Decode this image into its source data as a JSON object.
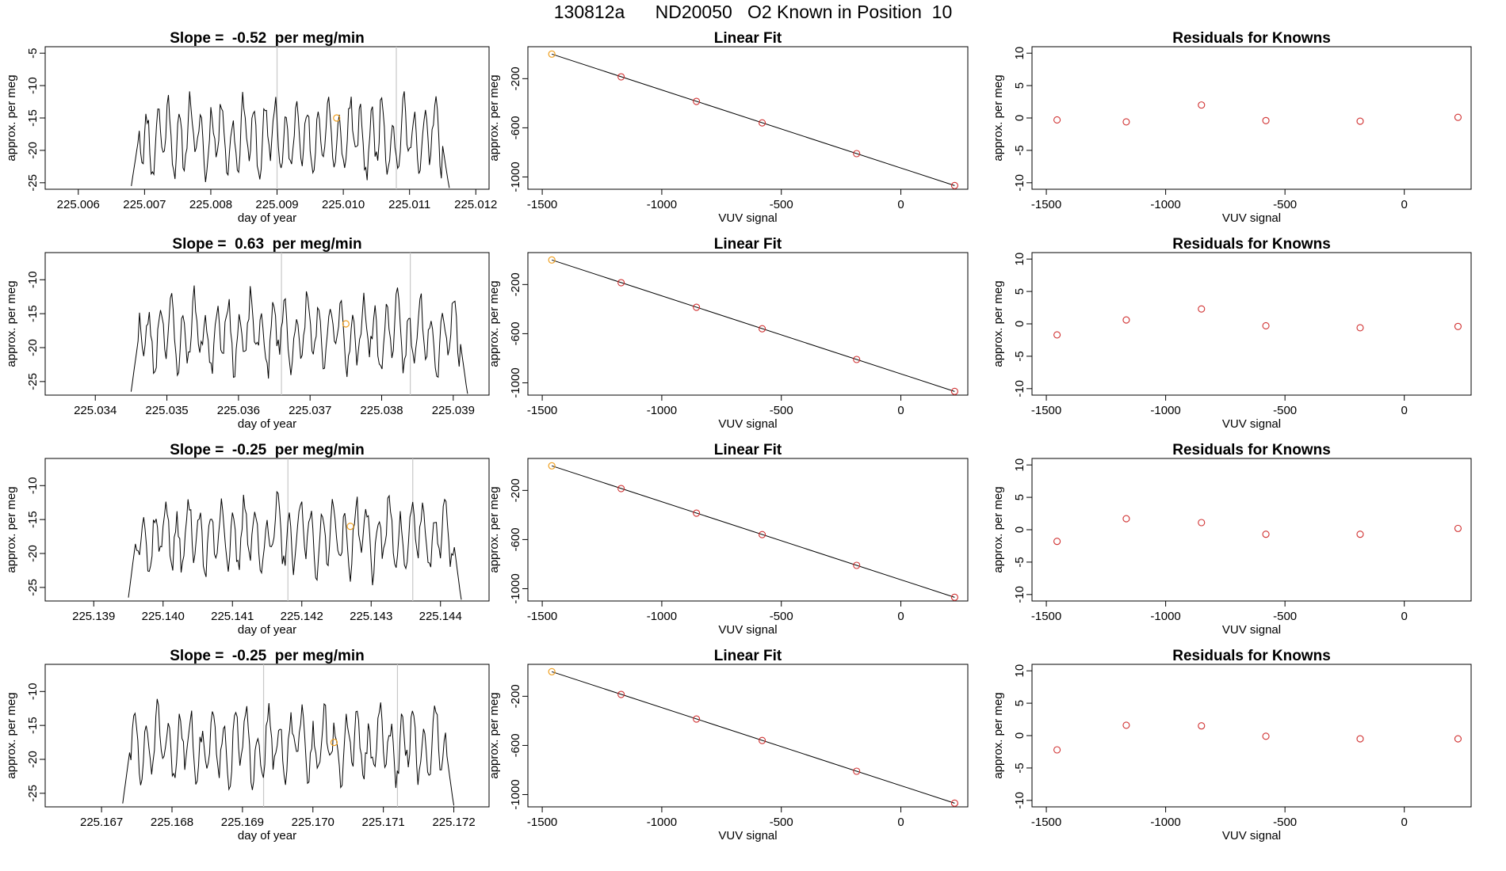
{
  "title": {
    "run": "130812a",
    "tank": "ND20050",
    "label": "O2 Known in Position  10"
  },
  "colors": {
    "trace": "#000000",
    "marker_guide": "#c8c8c8",
    "residual_points": "#d03030",
    "highlight_point": "#f0a020"
  },
  "chart_data": [
    {
      "row": 1,
      "panels": [
        {
          "type": "line",
          "slope_prefix": "Slope =  ",
          "slope": "-0.52",
          "slope_suffix": "  per meg/min",
          "xlabel": "day of year",
          "ylabel": "approx. per meg",
          "xlim": [
            225.0055,
            225.0122
          ],
          "ylim": [
            -26,
            -4
          ],
          "xticks": [
            225.006,
            225.007,
            225.008,
            225.009,
            225.01,
            225.011,
            225.012
          ],
          "xtick_labels": [
            "225.006",
            "225.007",
            "225.008",
            "225.009",
            "225.010",
            "225.011",
            "225.012"
          ],
          "yticks": [
            -5,
            -10,
            -15,
            -20,
            -25
          ],
          "ytick_labels": [
            "-5",
            "-10",
            "-15",
            "-20",
            "-25"
          ],
          "trace_start": 225.0068,
          "trace_end": 225.0116,
          "trace_base": -18,
          "trace_amp": 4.5,
          "seed": 11,
          "vlines": [
            225.009,
            225.0108
          ],
          "highlight": [
            225.0099,
            -15
          ],
          "series": []
        },
        {
          "type": "scatter",
          "title": "Linear Fit",
          "xlabel": "VUV signal",
          "ylabel": "approx. per meg",
          "xlim": [
            -1560,
            280
          ],
          "ylim": [
            -1100,
            60
          ],
          "xticks": [
            -1500,
            -1000,
            -500,
            0
          ],
          "xtick_labels": [
            "-1500",
            "-1000",
            "-500",
            "0"
          ],
          "yticks": [
            -200,
            -600,
            -1000
          ],
          "ytick_labels": [
            "-200",
            "-600",
            "-1000"
          ],
          "fit": [
            [
              -1460,
              0
            ],
            [
              225,
              -1070
            ]
          ],
          "points": [
            [
              -1460,
              0
            ],
            [
              -1170,
              -185
            ],
            [
              -855,
              -385
            ],
            [
              -580,
              -560
            ],
            [
              -185,
              -810
            ],
            [
              225,
              -1070
            ]
          ],
          "highlight_index": 0
        },
        {
          "type": "scatter",
          "title": "Residuals for Knowns",
          "xlabel": "VUV signal",
          "ylabel": "approx. per meg",
          "xlim": [
            -1560,
            280
          ],
          "ylim": [
            -11,
            11
          ],
          "xticks": [
            -1500,
            -1000,
            -500,
            0
          ],
          "xtick_labels": [
            "-1500",
            "-1000",
            "-500",
            "0"
          ],
          "yticks": [
            10,
            5,
            0,
            -5,
            -10
          ],
          "ytick_labels": [
            "10",
            "5",
            "0",
            "-5",
            "-10"
          ],
          "points": [
            [
              -1455,
              -0.3
            ],
            [
              -1165,
              -0.6
            ],
            [
              -850,
              2.0
            ],
            [
              -580,
              -0.4
            ],
            [
              -185,
              -0.5
            ],
            [
              225,
              0.1
            ]
          ]
        }
      ]
    },
    {
      "row": 2,
      "panels": [
        {
          "type": "line",
          "slope_prefix": "Slope =  ",
          "slope": "0.63",
          "slope_suffix": "  per meg/min",
          "xlabel": "day of year",
          "ylabel": "approx. per meg",
          "xlim": [
            225.0333,
            225.0395
          ],
          "ylim": [
            -27,
            -6
          ],
          "xticks": [
            225.034,
            225.035,
            225.036,
            225.037,
            225.038,
            225.039
          ],
          "xtick_labels": [
            "225.034",
            "225.035",
            "225.036",
            "225.037",
            "225.038",
            "225.039"
          ],
          "yticks": [
            -10,
            -15,
            -20,
            -25
          ],
          "ytick_labels": [
            "-10",
            "-15",
            "-20",
            "-25"
          ],
          "trace_start": 225.0345,
          "trace_end": 225.0392,
          "trace_base": -18,
          "trace_amp": 4,
          "seed": 23,
          "vlines": [
            225.0366,
            225.0384
          ],
          "highlight": [
            225.0375,
            -16.5
          ],
          "series": []
        },
        {
          "type": "scatter",
          "title": "Linear Fit",
          "xlabel": "VUV signal",
          "ylabel": "approx. per meg",
          "xlim": [
            -1560,
            280
          ],
          "ylim": [
            -1100,
            60
          ],
          "xticks": [
            -1500,
            -1000,
            -500,
            0
          ],
          "xtick_labels": [
            "-1500",
            "-1000",
            "-500",
            "0"
          ],
          "yticks": [
            -200,
            -600,
            -1000
          ],
          "ytick_labels": [
            "-200",
            "-600",
            "-1000"
          ],
          "fit": [
            [
              -1460,
              0
            ],
            [
              225,
              -1070
            ]
          ],
          "points": [
            [
              -1460,
              0
            ],
            [
              -1170,
              -185
            ],
            [
              -855,
              -385
            ],
            [
              -580,
              -560
            ],
            [
              -185,
              -810
            ],
            [
              225,
              -1070
            ]
          ],
          "highlight_index": 0
        },
        {
          "type": "scatter",
          "title": "Residuals for Knowns",
          "xlabel": "VUV signal",
          "ylabel": "approx. per meg",
          "xlim": [
            -1560,
            280
          ],
          "ylim": [
            -11,
            11
          ],
          "xticks": [
            -1500,
            -1000,
            -500,
            0
          ],
          "xtick_labels": [
            "-1500",
            "-1000",
            "-500",
            "0"
          ],
          "yticks": [
            10,
            5,
            0,
            -5,
            -10
          ],
          "ytick_labels": [
            "10",
            "5",
            "0",
            "-5",
            "-10"
          ],
          "points": [
            [
              -1455,
              -1.7
            ],
            [
              -1165,
              0.6
            ],
            [
              -850,
              2.3
            ],
            [
              -580,
              -0.3
            ],
            [
              -185,
              -0.6
            ],
            [
              225,
              -0.4
            ]
          ]
        }
      ]
    },
    {
      "row": 3,
      "panels": [
        {
          "type": "line",
          "slope_prefix": "Slope =  ",
          "slope": "-0.25",
          "slope_suffix": "  per meg/min",
          "xlabel": "day of year",
          "ylabel": "approx. per meg",
          "xlim": [
            225.1383,
            225.1447
          ],
          "ylim": [
            -27,
            -6
          ],
          "xticks": [
            225.139,
            225.14,
            225.141,
            225.142,
            225.143,
            225.144
          ],
          "xtick_labels": [
            "225.139",
            "225.140",
            "225.141",
            "225.142",
            "225.143",
            "225.144"
          ],
          "yticks": [
            -10,
            -15,
            -20,
            -25
          ],
          "ytick_labels": [
            "-10",
            "-15",
            "-20",
            "-25"
          ],
          "trace_start": 225.1395,
          "trace_end": 225.1443,
          "trace_base": -17.5,
          "trace_amp": 4,
          "seed": 37,
          "vlines": [
            225.1418,
            225.1436
          ],
          "highlight": [
            225.1427,
            -16
          ],
          "series": []
        },
        {
          "type": "scatter",
          "title": "Linear Fit",
          "xlabel": "VUV signal",
          "ylabel": "approx. per meg",
          "xlim": [
            -1560,
            280
          ],
          "ylim": [
            -1100,
            60
          ],
          "xticks": [
            -1500,
            -1000,
            -500,
            0
          ],
          "xtick_labels": [
            "-1500",
            "-1000",
            "-500",
            "0"
          ],
          "yticks": [
            -200,
            -600,
            -1000
          ],
          "ytick_labels": [
            "-200",
            "-600",
            "-1000"
          ],
          "fit": [
            [
              -1460,
              0
            ],
            [
              225,
              -1070
            ]
          ],
          "points": [
            [
              -1460,
              0
            ],
            [
              -1170,
              -185
            ],
            [
              -855,
              -385
            ],
            [
              -580,
              -560
            ],
            [
              -185,
              -810
            ],
            [
              225,
              -1070
            ]
          ],
          "highlight_index": 0
        },
        {
          "type": "scatter",
          "title": "Residuals for Knowns",
          "xlabel": "VUV signal",
          "ylabel": "approx. per meg",
          "xlim": [
            -1560,
            280
          ],
          "ylim": [
            -11,
            11
          ],
          "xticks": [
            -1500,
            -1000,
            -500,
            0
          ],
          "xtick_labels": [
            "-1500",
            "-1000",
            "-500",
            "0"
          ],
          "yticks": [
            10,
            5,
            0,
            -5,
            -10
          ],
          "ytick_labels": [
            "10",
            "5",
            "0",
            "-5",
            "-10"
          ],
          "points": [
            [
              -1455,
              -1.8
            ],
            [
              -1165,
              1.7
            ],
            [
              -850,
              1.1
            ],
            [
              -580,
              -0.7
            ],
            [
              -185,
              -0.7
            ],
            [
              225,
              0.2
            ]
          ]
        }
      ]
    },
    {
      "row": 4,
      "panels": [
        {
          "type": "line",
          "slope_prefix": "Slope =  ",
          "slope": "-0.25",
          "slope_suffix": "  per meg/min",
          "xlabel": "day of year",
          "ylabel": "approx. per meg",
          "xlim": [
            225.1662,
            225.1725
          ],
          "ylim": [
            -27,
            -6
          ],
          "xticks": [
            225.167,
            225.168,
            225.169,
            225.17,
            225.171,
            225.172
          ],
          "xtick_labels": [
            "225.167",
            "225.168",
            "225.169",
            "225.170",
            "225.171",
            "225.172"
          ],
          "yticks": [
            -10,
            -15,
            -20,
            -25
          ],
          "ytick_labels": [
            "-10",
            "-15",
            "-20",
            "-25"
          ],
          "trace_start": 225.1673,
          "trace_end": 225.172,
          "trace_base": -18,
          "trace_amp": 4,
          "seed": 51,
          "vlines": [
            225.1693,
            225.1712
          ],
          "highlight": [
            225.1703,
            -17.5
          ],
          "series": []
        },
        {
          "type": "scatter",
          "title": "Linear Fit",
          "xlabel": "VUV signal",
          "ylabel": "approx. per meg",
          "xlim": [
            -1560,
            280
          ],
          "ylim": [
            -1100,
            60
          ],
          "xticks": [
            -1500,
            -1000,
            -500,
            0
          ],
          "xtick_labels": [
            "-1500",
            "-1000",
            "-500",
            "0"
          ],
          "yticks": [
            -200,
            -600,
            -1000
          ],
          "ytick_labels": [
            "-200",
            "-600",
            "-1000"
          ],
          "fit": [
            [
              -1460,
              0
            ],
            [
              225,
              -1070
            ]
          ],
          "points": [
            [
              -1460,
              0
            ],
            [
              -1170,
              -185
            ],
            [
              -855,
              -385
            ],
            [
              -580,
              -560
            ],
            [
              -185,
              -810
            ],
            [
              225,
              -1070
            ]
          ],
          "highlight_index": 0
        },
        {
          "type": "scatter",
          "title": "Residuals for Knowns",
          "xlabel": "VUV signal",
          "ylabel": "approx. per meg",
          "xlim": [
            -1560,
            280
          ],
          "ylim": [
            -11,
            11
          ],
          "xticks": [
            -1500,
            -1000,
            -500,
            0
          ],
          "xtick_labels": [
            "-1500",
            "-1000",
            "-500",
            "0"
          ],
          "yticks": [
            10,
            5,
            0,
            -5,
            -10
          ],
          "ytick_labels": [
            "10",
            "5",
            "0",
            "-5",
            "-10"
          ],
          "points": [
            [
              -1455,
              -2.2
            ],
            [
              -1165,
              1.6
            ],
            [
              -850,
              1.5
            ],
            [
              -580,
              -0.1
            ],
            [
              -185,
              -0.5
            ],
            [
              225,
              -0.5
            ]
          ]
        }
      ]
    }
  ]
}
